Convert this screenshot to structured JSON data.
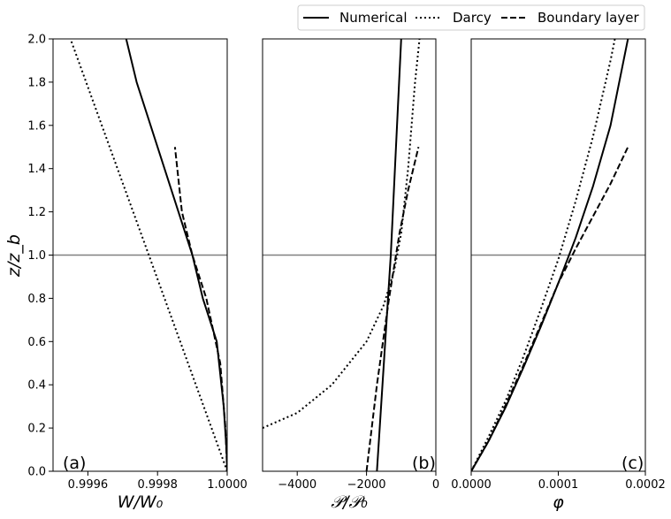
{
  "chart_data": [
    {
      "type": "line",
      "panel_label": "(a)",
      "xlabel": "W/W₀",
      "ylabel": "z/z_b",
      "xlim": [
        0.9995,
        1.0
      ],
      "ylim": [
        0,
        2.0
      ],
      "xticks": [
        "0.9996",
        "0.9998",
        "1.0000"
      ],
      "xtick_values": [
        0.9996,
        0.9998,
        1.0
      ],
      "yticks": [
        "0.0",
        "0.2",
        "0.4",
        "0.6",
        "0.8",
        "1.0",
        "1.2",
        "1.4",
        "1.6",
        "1.8",
        "2.0"
      ],
      "ytick_values": [
        0,
        0.2,
        0.4,
        0.6,
        0.8,
        1.0,
        1.2,
        1.4,
        1.6,
        1.8,
        2.0
      ],
      "reference_line_y": 1.0,
      "series": [
        {
          "name": "Numerical",
          "style": "solid",
          "points": [
            [
              1.0,
              0.0
            ],
            [
              0.999998,
              0.1
            ],
            [
              0.99999,
              0.3
            ],
            [
              0.99997,
              0.6
            ],
            [
              0.99993,
              0.8
            ],
            [
              0.9999,
              1.0
            ],
            [
              0.99986,
              1.2
            ],
            [
              0.99982,
              1.4
            ],
            [
              0.99978,
              1.6
            ],
            [
              0.99974,
              1.8
            ],
            [
              0.99971,
              2.0
            ]
          ]
        },
        {
          "name": "Darcy",
          "style": "dotted",
          "points": [
            [
              1.0,
              0.0
            ],
            [
              0.99955,
              2.0
            ]
          ]
        },
        {
          "name": "Boundary layer",
          "style": "dashed",
          "points": [
            [
              1.0,
              0.0
            ],
            [
              0.999995,
              0.2
            ],
            [
              0.99998,
              0.5
            ],
            [
              0.99994,
              0.8
            ],
            [
              0.9999,
              1.0
            ],
            [
              0.99987,
              1.2
            ],
            [
              0.99985,
              1.5
            ]
          ]
        }
      ]
    },
    {
      "type": "line",
      "panel_label": "(b)",
      "xlabel": "𝒫/𝒫₀",
      "ylabel": "",
      "xlim": [
        -5000,
        0
      ],
      "ylim": [
        0,
        2.0
      ],
      "xticks": [
        "−4000",
        "−2000",
        "0"
      ],
      "xtick_values": [
        -4000,
        -2000,
        0
      ],
      "reference_line_y": 1.0,
      "series": [
        {
          "name": "Numerical",
          "style": "solid",
          "points": [
            [
              -1700,
              0.0
            ],
            [
              -1500,
              0.5
            ],
            [
              -1300,
              1.0
            ],
            [
              -1150,
              1.5
            ],
            [
              -1000,
              2.0
            ]
          ]
        },
        {
          "name": "Darcy",
          "style": "dotted",
          "points": [
            [
              -5000,
              0.2
            ],
            [
              -4000,
              0.27
            ],
            [
              -3000,
              0.4
            ],
            [
              -2000,
              0.6
            ],
            [
              -1500,
              0.77
            ],
            [
              -1200,
              0.93
            ],
            [
              -1000,
              1.1
            ],
            [
              -800,
              1.4
            ],
            [
              -600,
              1.8
            ],
            [
              -470,
              2.0
            ]
          ]
        },
        {
          "name": "Boundary layer",
          "style": "dashed",
          "points": [
            [
              -2000,
              0.0
            ],
            [
              -1700,
              0.4
            ],
            [
              -1350,
              0.8
            ],
            [
              -1050,
              1.1
            ],
            [
              -800,
              1.3
            ],
            [
              -500,
              1.5
            ]
          ]
        }
      ]
    },
    {
      "type": "line",
      "panel_label": "(c)",
      "xlabel": "φ",
      "ylabel": "",
      "xlim": [
        0,
        0.0002
      ],
      "ylim": [
        0,
        2.0
      ],
      "xticks": [
        "0.0000",
        "0.0001",
        "0.0002"
      ],
      "xtick_values": [
        0,
        0.0001,
        0.0002
      ],
      "reference_line_y": 1.0,
      "series": [
        {
          "name": "Numerical",
          "style": "solid",
          "points": [
            [
              0,
              0.0
            ],
            [
              2e-05,
              0.14
            ],
            [
              4e-05,
              0.3
            ],
            [
              6e-05,
              0.48
            ],
            [
              8e-05,
              0.67
            ],
            [
              0.0001,
              0.87
            ],
            [
              0.00012,
              1.08
            ],
            [
              0.00014,
              1.32
            ],
            [
              0.00016,
              1.6
            ],
            [
              0.00018,
              2.0
            ]
          ]
        },
        {
          "name": "Darcy",
          "style": "dotted",
          "points": [
            [
              0,
              0.0
            ],
            [
              2e-05,
              0.16
            ],
            [
              4e-05,
              0.33
            ],
            [
              6e-05,
              0.53
            ],
            [
              8e-05,
              0.75
            ],
            [
              0.0001,
              0.98
            ],
            [
              0.00012,
              1.25
            ],
            [
              0.00014,
              1.55
            ],
            [
              0.00016,
              1.9
            ],
            [
              0.000165,
              2.0
            ]
          ]
        },
        {
          "name": "Boundary layer",
          "style": "dashed",
          "points": [
            [
              0,
              0.0
            ],
            [
              2e-05,
              0.14
            ],
            [
              4e-05,
              0.31
            ],
            [
              6e-05,
              0.49
            ],
            [
              8e-05,
              0.68
            ],
            [
              0.0001,
              0.87
            ],
            [
              0.00012,
              1.03
            ],
            [
              0.00014,
              1.18
            ],
            [
              0.00016,
              1.33
            ],
            [
              0.00018,
              1.5
            ]
          ]
        }
      ]
    }
  ],
  "legend": {
    "position": "top-right",
    "entries": [
      {
        "label": "Numerical",
        "style": "solid"
      },
      {
        "label": "Darcy",
        "style": "dotted"
      },
      {
        "label": "Boundary layer",
        "style": "dashed"
      }
    ]
  },
  "colors": {
    "lines": "#000000",
    "reference_line": "#808080"
  }
}
